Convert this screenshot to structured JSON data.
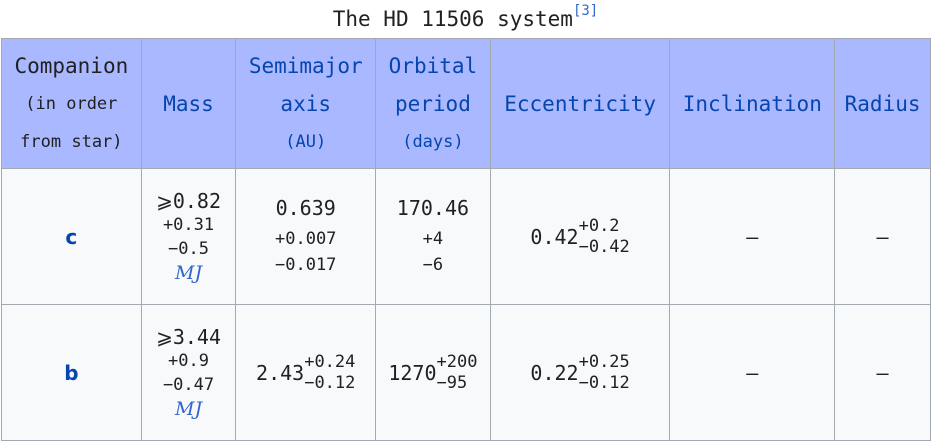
{
  "caption": {
    "title": "The HD 11506 system",
    "ref": "[3]"
  },
  "columns": {
    "companion": [
      "Companion",
      "(in order",
      "from star)"
    ],
    "mass": "Mass",
    "semimajor": [
      "Semimajor",
      "axis",
      "(AU)"
    ],
    "period": [
      "Orbital",
      "period",
      "(days)"
    ],
    "ecc": "Eccentricity",
    "incl": "Inclination",
    "radius": "Radius"
  },
  "rows": [
    {
      "name": "c",
      "mass": {
        "value": "⩾0.82",
        "plus": "+0.31",
        "minus": "−0.5",
        "unit": "MJ"
      },
      "axis": {
        "value": "0.639",
        "plus": "+0.007",
        "minus": "−0.017"
      },
      "period": {
        "value": "170.46",
        "plus": "+4",
        "minus": "−6"
      },
      "ecc": {
        "value": "0.42",
        "plus": "+0.2",
        "minus": "−0.42"
      },
      "incl": "—",
      "radius": "—"
    },
    {
      "name": "b",
      "mass": {
        "value": "⩾3.44",
        "plus": "+0.9",
        "minus": "−0.47",
        "unit": "MJ"
      },
      "axis": {
        "value": "2.43",
        "plus": "+0.24",
        "minus": "−0.12"
      },
      "period": {
        "value": "1270",
        "plus": "+200",
        "minus": "−95"
      },
      "ecc": {
        "value": "0.22",
        "plus": "+0.25",
        "minus": "−0.12"
      },
      "incl": "—",
      "radius": "—"
    }
  ]
}
